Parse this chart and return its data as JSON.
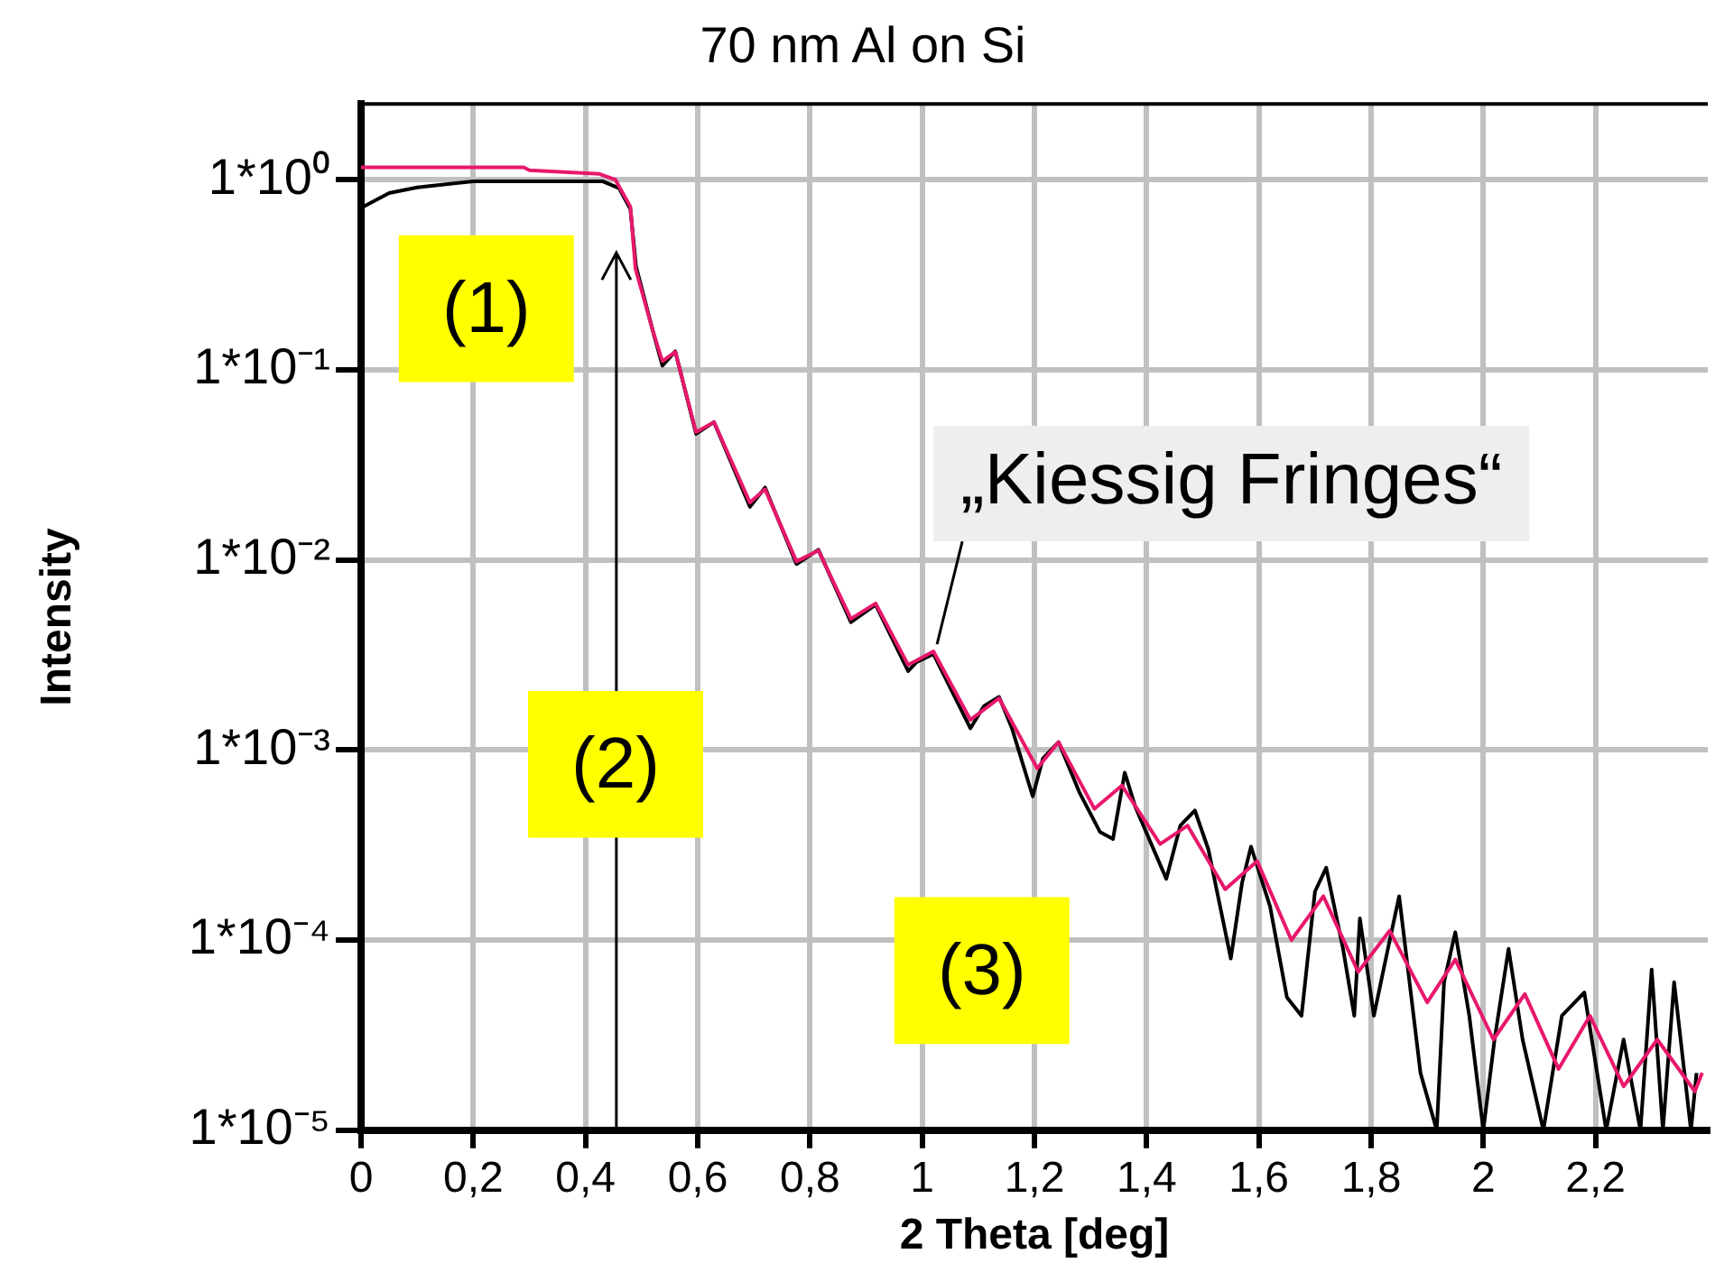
{
  "chart_data": {
    "type": "line",
    "title": "70 nm Al on Si",
    "xlabel": "2 Theta [deg]",
    "ylabel": "Intensity",
    "log": "y",
    "grid": true,
    "marker": "none",
    "line_style": "solid",
    "xlim": [
      0,
      2.4
    ],
    "xticks": [
      {
        "value": 0,
        "label": "0"
      },
      {
        "value": 0.2,
        "label": "0,2"
      },
      {
        "value": 0.4,
        "label": "0,4"
      },
      {
        "value": 0.6,
        "label": "0,6"
      },
      {
        "value": 0.8,
        "label": "0,8"
      },
      {
        "value": 1,
        "label": "1"
      },
      {
        "value": 1.2,
        "label": "1,2"
      },
      {
        "value": 1.4,
        "label": "1,4"
      },
      {
        "value": 1.6,
        "label": "1,6"
      },
      {
        "value": 1.8,
        "label": "1,8"
      },
      {
        "value": 2,
        "label": "2"
      },
      {
        "value": 2.2,
        "label": "2,2"
      }
    ],
    "ylim": [
      1e-05,
      2.5
    ],
    "yticks": [
      {
        "value": 1,
        "label": "1*10⁰"
      },
      {
        "value": 0.1,
        "label": "1*10⁻¹"
      },
      {
        "value": 0.01,
        "label": "1*10⁻²"
      },
      {
        "value": 0.001,
        "label": "1*10⁻³"
      },
      {
        "value": 0.0001,
        "label": "1*10⁻⁴"
      },
      {
        "value": 1e-05,
        "label": "1*10⁻⁵"
      }
    ],
    "ref_lines": [
      {
        "axis": "x",
        "value": 0.455,
        "color": "#000000"
      }
    ],
    "annotations": [
      "(1)",
      "(2)",
      "(3)",
      {
        "text": "„Kiessig Fringes“",
        "x": 1.02,
        "y": 0.0033
      }
    ],
    "series": [
      {
        "color": "#e8186c",
        "x": [
          0,
          0.29,
          0.3,
          0.425,
          0.453,
          0.48,
          0.489,
          0.52,
          0.537,
          0.56,
          0.597,
          0.629,
          0.693,
          0.72,
          0.776,
          0.815,
          0.873,
          0.917,
          0.975,
          1.02,
          1.086,
          1.137,
          1.205,
          1.243,
          1.307,
          1.356,
          1.424,
          1.473,
          1.54,
          1.597,
          1.658,
          1.715,
          1.777,
          1.833,
          1.9,
          1.95,
          2.018,
          2.074,
          2.134,
          2.19,
          2.25,
          2.31,
          2.377,
          2.39
        ],
        "values": [
          1.16,
          1.16,
          1.12,
          1.07,
          1.0,
          0.72,
          0.34,
          0.16,
          0.111,
          0.124,
          0.047,
          0.053,
          0.02,
          0.0235,
          0.0098,
          0.0112,
          0.0049,
          0.0059,
          0.0028,
          0.0033,
          0.00144,
          0.00187,
          0.0008,
          0.0011,
          0.00049,
          0.00065,
          0.00032,
          0.0004,
          0.000185,
          0.00026,
          0.0001,
          0.00017,
          6.8e-05,
          0.000112,
          4.7e-05,
          7.9e-05,
          3e-05,
          5.2e-05,
          2.1e-05,
          4e-05,
          1.7e-05,
          3e-05,
          1.6e-05,
          2e-05
        ]
      },
      {
        "color": "#000000",
        "x": [
          0,
          0.05,
          0.1,
          0.2,
          0.3,
          0.43,
          0.46,
          0.48,
          0.49,
          0.52,
          0.537,
          0.56,
          0.597,
          0.629,
          0.693,
          0.72,
          0.776,
          0.815,
          0.873,
          0.917,
          0.975,
          0.99,
          1.02,
          1.086,
          1.11,
          1.137,
          1.16,
          1.197,
          1.215,
          1.243,
          1.28,
          1.317,
          1.34,
          1.361,
          1.38,
          1.435,
          1.46,
          1.486,
          1.51,
          1.55,
          1.57,
          1.586,
          1.62,
          1.65,
          1.676,
          1.7,
          1.72,
          1.75,
          1.77,
          1.78,
          1.805,
          1.83,
          1.85,
          1.888,
          1.917,
          1.93,
          1.95,
          1.975,
          2.0,
          2.02,
          2.045,
          2.07,
          2.107,
          2.14,
          2.18,
          2.219,
          2.25,
          2.28,
          2.3,
          2.32,
          2.34,
          2.37,
          2.38
        ],
        "values": [
          0.71,
          0.85,
          0.91,
          0.98,
          0.98,
          0.98,
          0.9,
          0.7,
          0.35,
          0.16,
          0.105,
          0.125,
          0.046,
          0.053,
          0.019,
          0.024,
          0.0095,
          0.0113,
          0.0047,
          0.0058,
          0.0026,
          0.0029,
          0.0032,
          0.0013,
          0.0017,
          0.0019,
          0.0013,
          0.00057,
          0.0009,
          0.0011,
          0.0006,
          0.00037,
          0.00034,
          0.00076,
          0.0005,
          0.00021,
          0.0004,
          0.00048,
          0.0003,
          8e-05,
          0.0002,
          0.00031,
          0.00015,
          5e-05,
          4e-05,
          0.00018,
          0.00024,
          9e-05,
          4e-05,
          0.00013,
          4e-05,
          9e-05,
          0.00017,
          2e-05,
          1e-05,
          6e-05,
          0.00011,
          4e-05,
          1e-05,
          3e-05,
          9e-05,
          3e-05,
          1e-05,
          4e-05,
          5.3e-05,
          1e-05,
          3e-05,
          1e-05,
          7e-05,
          1e-05,
          6e-05,
          1e-05,
          2e-05
        ]
      }
    ]
  }
}
